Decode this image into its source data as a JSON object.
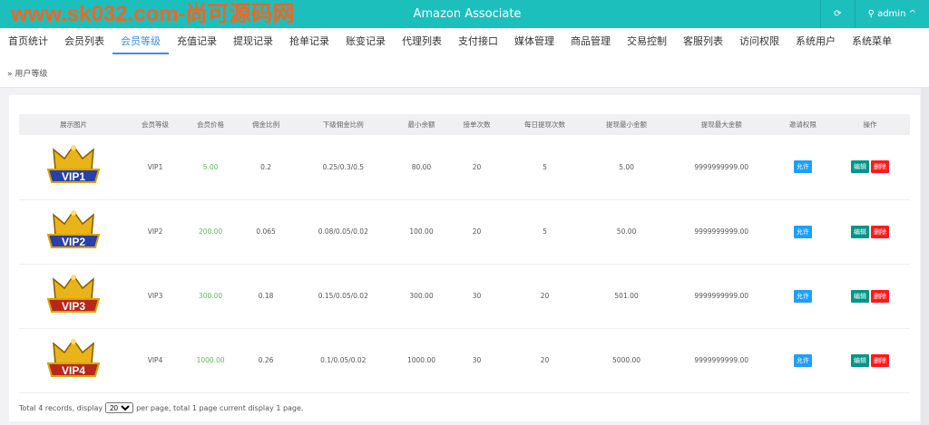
{
  "header": {
    "title": "Amazon Associate",
    "refresh_icon": "refresh-icon",
    "user": "admin",
    "watermark": "www.sk032.com-尚可源码网"
  },
  "nav": [
    {
      "label": "首页统计"
    },
    {
      "label": "会员列表"
    },
    {
      "label": "会员等级",
      "active": true
    },
    {
      "label": "充值记录"
    },
    {
      "label": "提现记录"
    },
    {
      "label": "抢单记录"
    },
    {
      "label": "账变记录"
    },
    {
      "label": "代理列表"
    },
    {
      "label": "支付接口"
    },
    {
      "label": "媒体管理"
    },
    {
      "label": "商品管理"
    },
    {
      "label": "交易控制"
    },
    {
      "label": "客服列表"
    },
    {
      "label": "访问权限"
    },
    {
      "label": "系统用户"
    },
    {
      "label": "系统菜单"
    }
  ],
  "breadcrumb": "用户等级",
  "table": {
    "headers": [
      "展示图片",
      "会员等级",
      "会员价格",
      "佣金比例",
      "下级佣金比例",
      "最小余额",
      "接单次数",
      "每日提现次数",
      "提现最小金额",
      "提现最大金额",
      "邀请权限",
      "操作"
    ],
    "rows": [
      {
        "badge": "VIP1",
        "level": "VIP1",
        "price": "5.00",
        "rate": "0.2",
        "sub_rate": "0.25/0.3/0.5",
        "min_balance": "80.00",
        "orders": "20",
        "daily_withdraw": "5",
        "withdraw_min": "5.00",
        "withdraw_max": "9999999999.00",
        "invite": "允许"
      },
      {
        "badge": "VIP2",
        "level": "VIP2",
        "price": "200.00",
        "rate": "0.065",
        "sub_rate": "0.08/0.05/0.02",
        "min_balance": "100.00",
        "orders": "20",
        "daily_withdraw": "5",
        "withdraw_min": "50.00",
        "withdraw_max": "9999999999.00",
        "invite": "允许"
      },
      {
        "badge": "VIP3",
        "level": "VIP3",
        "price": "300.00",
        "rate": "0.18",
        "sub_rate": "0.15/0.05/0.02",
        "min_balance": "300.00",
        "orders": "30",
        "daily_withdraw": "20",
        "withdraw_min": "501.00",
        "withdraw_max": "9999999999.00",
        "invite": "允许"
      },
      {
        "badge": "VIP4",
        "level": "VIP4",
        "price": "1000.00",
        "rate": "0.26",
        "sub_rate": "0.1/0.05/0.02",
        "min_balance": "1000.00",
        "orders": "30",
        "daily_withdraw": "20",
        "withdraw_min": "5000.00",
        "withdraw_max": "9999999999.00",
        "invite": "允许"
      }
    ],
    "edit_label": "编辑",
    "delete_label": "删除"
  },
  "pager": {
    "before": "Total 4 records, display",
    "per_page": "20",
    "after": "per page, total 1 page current display 1 page."
  },
  "colors": {
    "header": "#1dbfbd",
    "active": "#3a8ee6",
    "allow": "#1e9fff",
    "edit": "#009688",
    "delete": "#ff1a1a",
    "price": "#5cb85c"
  }
}
